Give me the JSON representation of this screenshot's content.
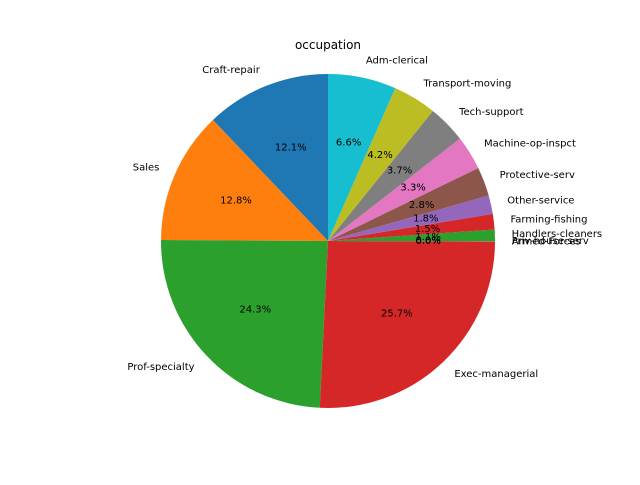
{
  "chart_data": {
    "type": "pie",
    "title": "occupation",
    "start_angle_deg": 90,
    "direction": "counterclockwise",
    "slices": [
      {
        "label": "Craft-repair",
        "value": 12.1,
        "pct_label": "12.1%",
        "color": "#1f77b4"
      },
      {
        "label": "Sales",
        "value": 12.8,
        "pct_label": "12.8%",
        "color": "#ff7f0e"
      },
      {
        "label": "Prof-specialty",
        "value": 24.3,
        "pct_label": "24.3%",
        "color": "#2ca02c"
      },
      {
        "label": "Exec-managerial",
        "value": 25.7,
        "pct_label": "25.7%",
        "color": "#d62728"
      },
      {
        "label": "Armed-Forces",
        "value": 0.02,
        "pct_label": "0.0%",
        "color": "#9467bd"
      },
      {
        "label": "Priv-house-serv",
        "value": 0.05,
        "pct_label": "0.0%",
        "color": "#8c564b"
      },
      {
        "label": "Handlers-cleaners",
        "value": 1.1,
        "pct_label": "1.1%",
        "color": "#2ca02c"
      },
      {
        "label": "Farming-fishing",
        "value": 1.5,
        "pct_label": "1.5%",
        "color": "#d62728"
      },
      {
        "label": "Other-service",
        "value": 1.8,
        "pct_label": "1.8%",
        "color": "#9467bd"
      },
      {
        "label": "Protective-serv",
        "value": 2.8,
        "pct_label": "2.8%",
        "color": "#8c564b"
      },
      {
        "label": "Machine-op-inspct",
        "value": 3.3,
        "pct_label": "3.3%",
        "color": "#e377c2"
      },
      {
        "label": "Tech-support",
        "value": 3.7,
        "pct_label": "3.7%",
        "color": "#7f7f7f"
      },
      {
        "label": "Transport-moving",
        "value": 4.2,
        "pct_label": "4.2%",
        "color": "#bcbd22"
      },
      {
        "label": "Adm-clerical",
        "value": 6.6,
        "pct_label": "6.6%",
        "color": "#17becf"
      }
    ]
  }
}
